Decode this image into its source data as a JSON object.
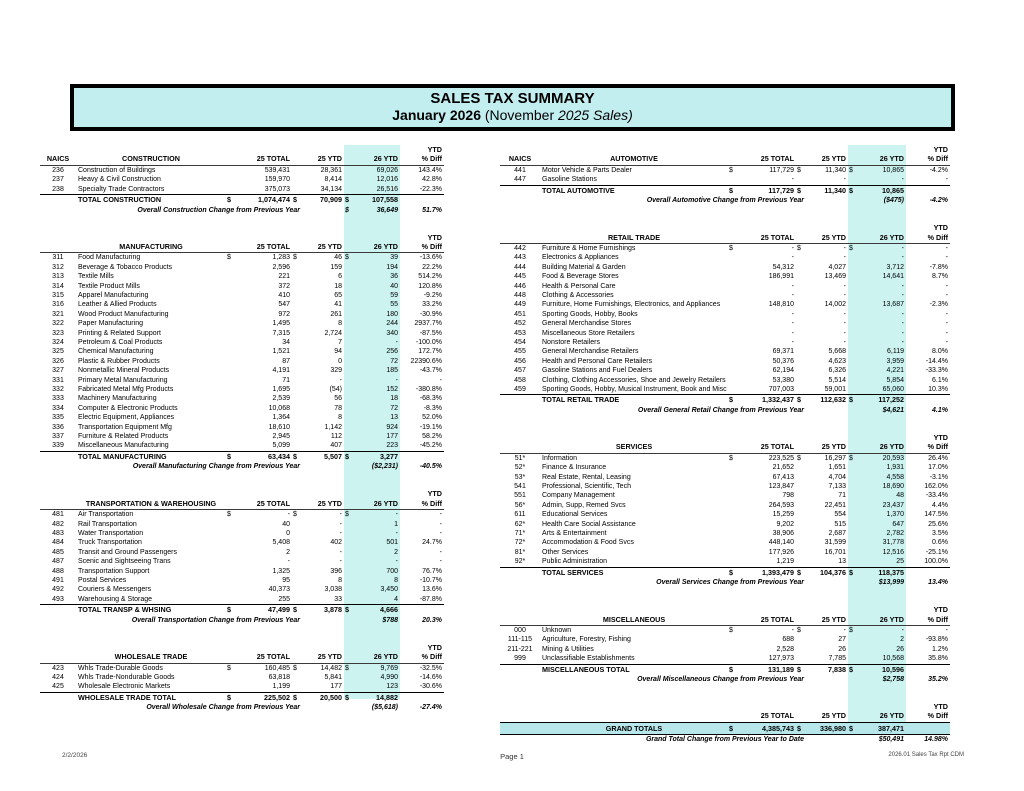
{
  "header": {
    "title": "SALES TAX SUMMARY",
    "subtitle_bold": "January 2026",
    "subtitle_plain": "(November",
    "subtitle_italic": "2025 Sales)"
  },
  "columns": {
    "naics": "NAICS",
    "t25": "25 TOTAL",
    "y25": "25 YTD",
    "y26": "26 YTD",
    "ytd": "YTD",
    "diff": "% Diff"
  },
  "colors": {
    "column_highlight": "#cdf3f1",
    "title_fill": "#c3eef0",
    "grand_fill": "#b7e6eb"
  },
  "left_sections": [
    {
      "title": "CONSTRUCTION",
      "show_naics": true,
      "first_row_dollar": false,
      "rows": [
        [
          "236",
          "Construction of Buildings",
          "539,431",
          "28,361",
          "69,026",
          "143.4%"
        ],
        [
          "237",
          "Heavy & Civil Construction",
          "159,970",
          "8,414",
          "12,016",
          "42.8%"
        ],
        [
          "238",
          "Specialty Trade Contractors",
          "375,073",
          "34,134",
          "26,516",
          "-22.3%"
        ]
      ],
      "total": {
        "label": "TOTAL CONSTRUCTION",
        "t25": "1,074,474",
        "y25": "70,909",
        "y26": "107,558"
      },
      "overall": {
        "label": "Overall Construction Change from Previous Year",
        "dollar": true,
        "value": "36,649",
        "diff": "51.7%"
      }
    },
    {
      "title": "MANUFACTURING",
      "show_naics": false,
      "first_row_dollar": true,
      "rows": [
        [
          "311",
          "Food Manufacturing",
          "1,283",
          "46",
          "39",
          "-13.6%"
        ],
        [
          "312",
          "Beverage & Tobacco Products",
          "2,596",
          "159",
          "194",
          "22.2%"
        ],
        [
          "313",
          "Textile Mills",
          "221",
          "6",
          "36",
          "514.2%"
        ],
        [
          "314",
          "Textile Product Mills",
          "372",
          "18",
          "40",
          "120.8%"
        ],
        [
          "315",
          "Apparel Manufacturing",
          "410",
          "65",
          "59",
          "-9.2%"
        ],
        [
          "316",
          "Leather & Allied Products",
          "547",
          "41",
          "55",
          "33.2%"
        ],
        [
          "321",
          "Wood Product Manufacturing",
          "972",
          "261",
          "180",
          "-30.9%"
        ],
        [
          "322",
          "Paper Manufacturing",
          "1,495",
          "8",
          "244",
          "2937.7%"
        ],
        [
          "323",
          "Printing & Related Support",
          "7,315",
          "2,724",
          "340",
          "-87.5%"
        ],
        [
          "324",
          "Petroleum & Coal Products",
          "34",
          "7",
          "-",
          "-100.0%"
        ],
        [
          "325",
          "Chemical Manufacturing",
          "1,521",
          "94",
          "256",
          "172.7%"
        ],
        [
          "326",
          "Plastic & Rubber Products",
          "87",
          "0",
          "72",
          "22390.6%"
        ],
        [
          "327",
          "Nonmetallic Mineral Products",
          "4,191",
          "329",
          "185",
          "-43.7%"
        ],
        [
          "331",
          "Primary Metal Manufacturing",
          "71",
          "-",
          "-",
          "-"
        ],
        [
          "332",
          "Fabricated Metal Mfg Products",
          "1,695",
          "(54)",
          "152",
          "-380.8%"
        ],
        [
          "333",
          "Machinery Manufacturing",
          "2,539",
          "56",
          "18",
          "-68.3%"
        ],
        [
          "334",
          "Computer & Electronic Products",
          "10,068",
          "78",
          "72",
          "-8.3%"
        ],
        [
          "335",
          "Electric Equipment, Appliances",
          "1,364",
          "8",
          "13",
          "52.0%"
        ],
        [
          "336",
          "Transportation Equipment Mfg",
          "18,610",
          "1,142",
          "924",
          "-19.1%"
        ],
        [
          "337",
          "Furniture & Related Products",
          "2,945",
          "112",
          "177",
          "58.2%"
        ],
        [
          "339",
          "Miscellaneous Manufacturing",
          "5,099",
          "407",
          "223",
          "-45.2%"
        ]
      ],
      "total": {
        "label": "TOTAL MANUFACTURING",
        "t25": "63,434",
        "y25": "5,507",
        "y26": "3,277"
      },
      "overall": {
        "label": "Overall Manufacturing Change from Previous Year",
        "value": "($2,231)",
        "diff": "-40.5%"
      }
    },
    {
      "title": "TRANSPORTATION  & WAREHOUSING",
      "show_naics": false,
      "first_row_dollar": true,
      "rows": [
        [
          "481",
          "Air Transportation",
          "-",
          "-",
          "-",
          "-"
        ],
        [
          "482",
          "Rail Transportation",
          "40",
          "-",
          "1",
          "-"
        ],
        [
          "483",
          "Water Transportation",
          "0",
          "-",
          "-",
          "-"
        ],
        [
          "484",
          "Truck Transportation",
          "5,408",
          "402",
          "501",
          "24.7%"
        ],
        [
          "485",
          "Transit and Ground Passengers",
          "2",
          "-",
          "2",
          "-"
        ],
        [
          "487",
          "Scenic and Sightseeing Trans",
          "-",
          "-",
          "-",
          "-"
        ],
        [
          "488",
          "Transportation Support",
          "1,325",
          "396",
          "700",
          "76.7%"
        ],
        [
          "491",
          "Postal Services",
          "95",
          "8",
          "8",
          "-10.7%"
        ],
        [
          "492",
          "Couriers & Messengers",
          "40,373",
          "3,038",
          "3,450",
          "13.6%"
        ],
        [
          "493",
          "Warehousing & Storage",
          "255",
          "33",
          "4",
          "-87.8%"
        ]
      ],
      "total": {
        "label": "TOTAL TRANSP & WHSING",
        "t25": "47,499",
        "y25": "3,878",
        "y26": "4,666"
      },
      "overall": {
        "label": "Overall Transportation Change from Previous Year",
        "value": "$788",
        "diff": "20.3%"
      }
    },
    {
      "title": "WHOLESALE TRADE",
      "show_naics": false,
      "first_row_dollar": true,
      "rows": [
        [
          "423",
          "Whls Trade-Durable Goods",
          "160,485",
          "14,482",
          "9,769",
          "-32.5%"
        ],
        [
          "424",
          "Whls Trade-Nondurable Goods",
          "63,818",
          "5,841",
          "4,990",
          "-14.6%"
        ],
        [
          "425",
          "Wholesale Electronic Markets",
          "1,199",
          "177",
          "123",
          "-30.6%"
        ]
      ],
      "total": {
        "label": "WHOLESALE TRADE TOTAL",
        "t25": "225,502",
        "y25": "20,500",
        "y26": "14,882"
      },
      "overall": {
        "label": "Overall Wholesale Change from Previous Year",
        "value": "($5,618)",
        "diff": "-27.4%"
      }
    }
  ],
  "right_sections": [
    {
      "title": "AUTOMOTIVE",
      "show_naics": true,
      "first_row_dollar": true,
      "rows": [
        [
          "441",
          "Motor Vehicle & Parts Dealer",
          "117,729",
          "11,340",
          "10,865",
          "-4.2%"
        ],
        [
          "447",
          "Gasoline Stations",
          "-",
          "-",
          "-",
          "-"
        ]
      ],
      "total": {
        "label": "TOTAL AUTOMOTIVE",
        "t25": "117,729",
        "y25": "11,340",
        "y26": "10,865"
      },
      "overall": {
        "label": "Overall Automotive Change from Previous Year",
        "value": "($475)",
        "diff": "-4.2%"
      }
    },
    {
      "title": "RETAIL TRADE",
      "show_naics": false,
      "first_row_dollar": true,
      "rows": [
        [
          "442",
          "Furniture & Home Furnishings",
          "-",
          "-",
          "-",
          "-"
        ],
        [
          "443",
          "Electronics & Appliances",
          "-",
          "-",
          "-",
          "-"
        ],
        [
          "444",
          "Building Material & Garden",
          "54,312",
          "4,027",
          "3,712",
          "-7.8%"
        ],
        [
          "445",
          "Food & Beverage Stores",
          "186,991",
          "13,469",
          "14,641",
          "8.7%"
        ],
        [
          "446",
          "Health & Personal Care",
          "-",
          "-",
          "-",
          "-"
        ],
        [
          "448",
          "Clothing & Accessories",
          "-",
          "-",
          "-",
          "-"
        ],
        [
          "449",
          "Furniture, Home Furnishings, Electronics, and Appliances",
          "148,810",
          "14,002",
          "13,687",
          "-2.3%"
        ],
        [
          "451",
          "Sporting Goods, Hobby, Books",
          "-",
          "-",
          "-",
          "-"
        ],
        [
          "452",
          "General Merchandise Stores",
          "-",
          "-",
          "-",
          "-"
        ],
        [
          "453",
          "Miscellaneous Store Retailers",
          "-",
          "-",
          "-",
          "-"
        ],
        [
          "454",
          "Nonstore Retailers",
          "-",
          "-",
          "-",
          "-"
        ],
        [
          "455",
          "General Merchandise Retailers",
          "69,371",
          "5,668",
          "6,119",
          "8.0%"
        ],
        [
          "456",
          "Health and Personal Care Retailers",
          "50,376",
          "4,623",
          "3,959",
          "-14.4%"
        ],
        [
          "457",
          "Gasoline Stations and Fuel Dealers",
          "62,194",
          "6,326",
          "4,221",
          "-33.3%"
        ],
        [
          "458",
          "Clothing, Clothing Accessories, Shoe and Jewelry Retailers",
          "53,380",
          "5,514",
          "5,854",
          "6.1%"
        ],
        [
          "459",
          "Sporting Goods, Hobby, Musical Instrument, Book and Misc",
          "707,003",
          "59,001",
          "65,060",
          "10.3%"
        ]
      ],
      "total": {
        "label": "TOTAL RETAIL TRADE",
        "t25": "1,332,437",
        "y25": "112,632",
        "y26": "117,252"
      },
      "overall": {
        "label": "Overall General Retail Change from Previous Year",
        "value": "$4,621",
        "diff": "4.1%"
      }
    },
    {
      "title": "SERVICES",
      "show_naics": false,
      "first_row_dollar": true,
      "rows": [
        [
          "51*",
          "Information",
          "223,525",
          "16,297",
          "20,593",
          "26.4%"
        ],
        [
          "52*",
          "Finance & Insurance",
          "21,652",
          "1,651",
          "1,931",
          "17.0%"
        ],
        [
          "53*",
          "Real Estate, Rental, Leasing",
          "67,413",
          "4,704",
          "4,558",
          "-3.1%"
        ],
        [
          "541",
          "Professional, Scientific, Tech",
          "123,847",
          "7,133",
          "18,690",
          "162.0%"
        ],
        [
          "551",
          "Company Management",
          "798",
          "71",
          "48",
          "-33.4%"
        ],
        [
          "56*",
          "Admin, Supp, Remed Svcs",
          "264,593",
          "22,451",
          "23,437",
          "4.4%"
        ],
        [
          "611",
          "Educational Services",
          "15,259",
          "554",
          "1,370",
          "147.5%"
        ],
        [
          "62*",
          "Health Care Social Assistance",
          "9,202",
          "515",
          "647",
          "25.6%"
        ],
        [
          "71*",
          "Arts & Entertainment",
          "38,906",
          "2,687",
          "2,782",
          "3.5%"
        ],
        [
          "72*",
          "Accommodation & Food Svcs",
          "448,140",
          "31,599",
          "31,778",
          "0.6%"
        ],
        [
          "81*",
          "Other Services",
          "177,926",
          "16,701",
          "12,516",
          "-25.1%"
        ],
        [
          "92*",
          "Public Administration",
          "1,219",
          "13",
          "25",
          "100.0%"
        ]
      ],
      "total": {
        "label": "TOTAL SERVICES",
        "t25": "1,393,479",
        "y25": "104,376",
        "y26": "118,375"
      },
      "overall": {
        "label": "Overall Services Change from Previous Year",
        "value": "$13,999",
        "diff": "13.4%"
      }
    },
    {
      "title": "MISCELLANEOUS",
      "show_naics": false,
      "first_row_dollar": true,
      "rows": [
        [
          "000",
          "Unknown",
          "-",
          "-",
          "-",
          "-"
        ],
        [
          "111-115",
          "Agriculture, Forestry, Fishing",
          "688",
          "27",
          "2",
          "-93.8%"
        ],
        [
          "211-221",
          "Mining & Utilities",
          "2,528",
          "26",
          "26",
          "1.2%"
        ],
        [
          "999",
          "Unclassifiable Establishments",
          "127,973",
          "7,785",
          "10,568",
          "35.8%"
        ]
      ],
      "total": {
        "label": "MISCELLANEOUS TOTAL",
        "t25": "131,189",
        "y25": "7,838",
        "y26": "10,596"
      },
      "overall": {
        "label": "Overall Miscellaneous Change from Previous Year",
        "value": "$2,758",
        "diff": "35.2%"
      }
    }
  ],
  "grand": {
    "total_label": "GRAND TOTALS",
    "t25": "4,385,743",
    "y25": "336,980",
    "y26": "387,471",
    "change_label": "Grand Total Change from Previous Year to Date",
    "change_value": "$50,491",
    "change_diff": "14.98%"
  },
  "footer": {
    "left": "2/2/2026",
    "center": "Page 1",
    "right": "2026.01 Sales Tax Rpt CDM"
  }
}
